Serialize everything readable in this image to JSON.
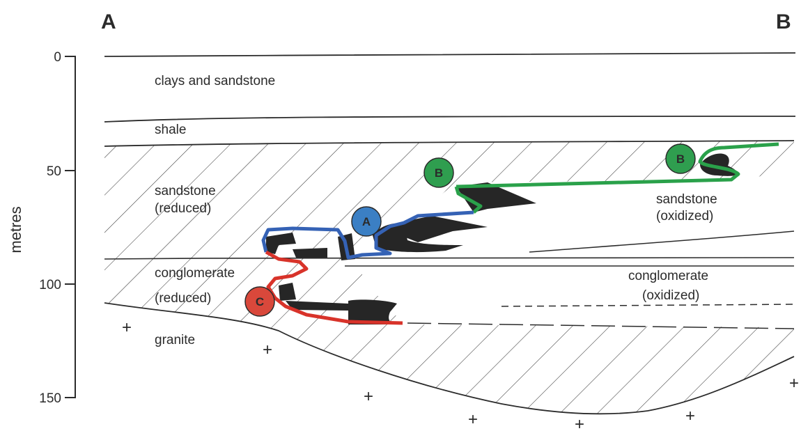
{
  "corners": {
    "left": "A",
    "right": "B"
  },
  "axis": {
    "title": "metres",
    "ticks": [
      "0",
      "50",
      "100",
      "150"
    ]
  },
  "layers": {
    "clays": "clays and sandstone",
    "shale": "shale",
    "sandstone_reduced_1": "sandstone",
    "sandstone_reduced_2": "(reduced)",
    "sandstone_oxidized_1": "sandstone",
    "sandstone_oxidized_2": "(oxidized)",
    "conglomerate_reduced_1": "conglomerate",
    "conglomerate_reduced_2": "(reduced)",
    "conglomerate_oxidized_1": "conglomerate",
    "conglomerate_oxidized_2": "(oxidized)",
    "granite": "granite"
  },
  "markers": [
    {
      "letter": "A",
      "color": "#3b7fc4"
    },
    {
      "letter": "B",
      "color": "#2f9e4f"
    },
    {
      "letter": "B",
      "color": "#2f9e4f"
    },
    {
      "letter": "C",
      "color": "#d9483b"
    }
  ],
  "granite_symbol": "+",
  "colors": {
    "ink": "#2b2b2b",
    "front_blue": "#3562b5",
    "front_green": "#2aa14a",
    "front_red": "#d8332a"
  }
}
